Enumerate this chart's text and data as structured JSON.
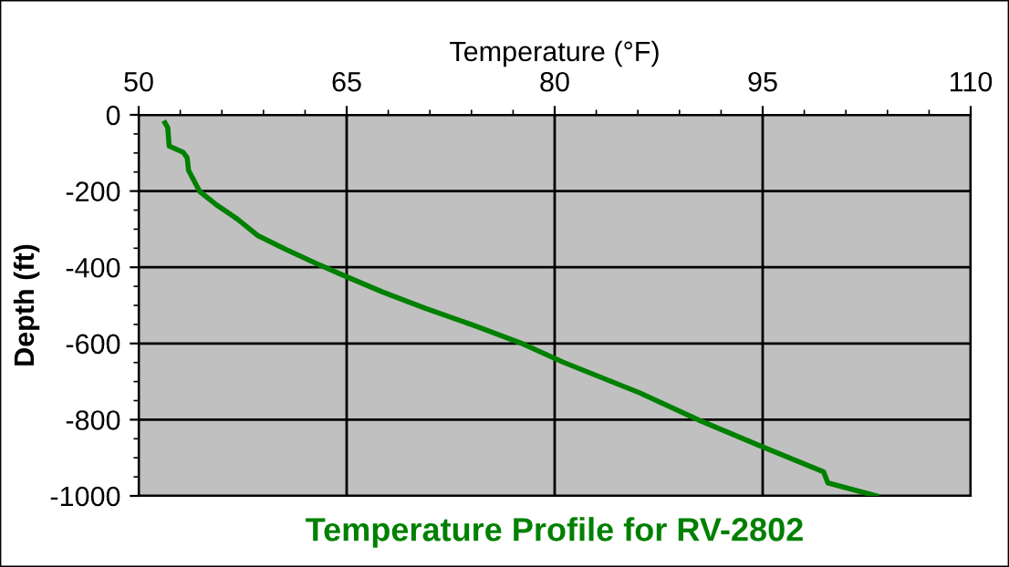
{
  "chart_data": {
    "type": "line",
    "title": "Temperature Profile for RV-2802",
    "xlabel": "Temperature (°F)",
    "ylabel": "Depth (ft)",
    "series": [
      {
        "color": "#008000",
        "x": [
          51.9,
          52.1,
          52.2,
          53.2,
          53.5,
          53.6,
          54.4,
          55.6,
          57.1,
          58.6,
          60.6,
          62.8,
          65.0,
          67.6,
          70.7,
          74.2,
          77.7,
          80.6,
          86.1,
          90.4,
          94.9,
          99.4,
          99.7,
          103.2
        ],
        "values": [
          -21,
          -34,
          -82,
          -98,
          -113,
          -146,
          -201,
          -236,
          -273,
          -317,
          -353,
          -390,
          -425,
          -465,
          -508,
          -553,
          -601,
          -649,
          -729,
          -801,
          -870,
          -937,
          -966,
          -1000
        ]
      }
    ],
    "xlim": [
      50,
      110
    ],
    "xticks": [
      50,
      65,
      80,
      95,
      110
    ],
    "ylim": [
      -1000,
      0
    ],
    "yticks": [
      -1000,
      -800,
      -600,
      -400,
      -200,
      0
    ],
    "grid": true,
    "legend": false,
    "marker": "none",
    "line_style": "solid"
  }
}
